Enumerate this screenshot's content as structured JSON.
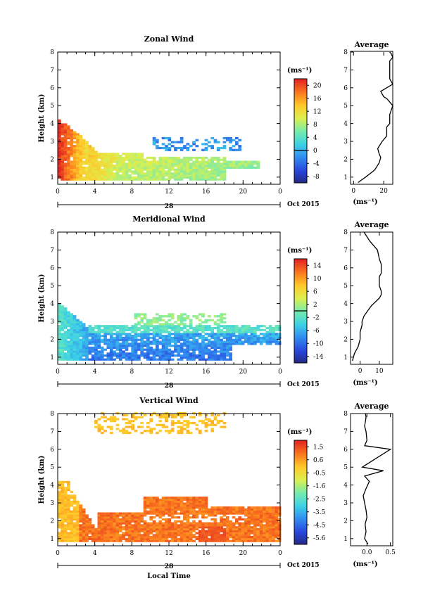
{
  "panels": [
    {
      "id": "zonal",
      "title": "Zonal Wind",
      "unit": "(ms⁻¹)",
      "colorbar_ticks": [
        "20",
        "16",
        "12",
        "8",
        "4",
        "0",
        "-4",
        "-8"
      ],
      "colorbar_range": [
        -10,
        22
      ],
      "zero_value": 0,
      "avg_ticks": [
        "0",
        "20"
      ],
      "avg_range": [
        -2,
        26
      ]
    },
    {
      "id": "meridional",
      "title": "Meridional Wind",
      "unit": "(ms⁻¹)",
      "colorbar_ticks": [
        "14",
        "10",
        "6",
        "2",
        "-2",
        "-6",
        "-10",
        "-14"
      ],
      "colorbar_range": [
        -16,
        16
      ],
      "zero_value": 0,
      "avg_ticks": [
        "0",
        "10"
      ],
      "avg_range": [
        -5,
        17
      ]
    },
    {
      "id": "vertical",
      "title": "Vertical Wind",
      "unit": "(ms⁻¹)",
      "colorbar_ticks": [
        "1.5",
        "0.6",
        "-0.5",
        "-1.6",
        "-2.5",
        "-3.5",
        "-4.5",
        "-5.6"
      ],
      "colorbar_range": [
        -6,
        2
      ],
      "zero_value": null,
      "avg_ticks": [
        "0.0",
        "0.5"
      ],
      "avg_range": [
        -0.35,
        0.55
      ]
    }
  ],
  "common": {
    "ylabel": "Height (km)",
    "y_ticks": [
      "1",
      "2",
      "3",
      "4",
      "5",
      "6",
      "7",
      "8"
    ],
    "x_ticks": [
      "0",
      "4",
      "8",
      "12",
      "16",
      "20",
      "0"
    ],
    "date_day": "28",
    "date_label": "Oct 2015",
    "xlabel": "Local Time",
    "avg_title": "Average",
    "avg_xlabel": "(ms⁻¹)"
  },
  "chart_data": [
    {
      "type": "heatmap",
      "title": "Zonal Wind",
      "ylabel": "Height (km)",
      "xlabel": "Local Time",
      "x_unit": "hour",
      "xlim": [
        0,
        24
      ],
      "ylim": [
        0.6,
        8
      ],
      "colorscale_range": [
        -10,
        22
      ],
      "description_points": [
        {
          "x": 0.5,
          "y": 3.5,
          "v": 21
        },
        {
          "x": 1,
          "y": 2.5,
          "v": 20
        },
        {
          "x": 2,
          "y": 2,
          "v": 16
        },
        {
          "x": 4,
          "y": 1.5,
          "v": 12
        },
        {
          "x": 8,
          "y": 1.5,
          "v": 10
        },
        {
          "x": 12,
          "y": 1.2,
          "v": 8
        },
        {
          "x": 16,
          "y": 1.5,
          "v": 7
        },
        {
          "x": 12,
          "y": 2.5,
          "v": -4
        }
      ]
    },
    {
      "type": "line",
      "title": "Average",
      "xlabel": "(ms⁻¹)",
      "ylabel": "Height (km)",
      "x": [
        3,
        8,
        14,
        17,
        18,
        17,
        16,
        19,
        22,
        22,
        22,
        24,
        24,
        24,
        26,
        24,
        22,
        20,
        18,
        22,
        26,
        24,
        24,
        24,
        24,
        24,
        24,
        26,
        25,
        24
      ],
      "y": [
        0.7,
        1.0,
        1.4,
        1.8,
        2.1,
        2.3,
        2.6,
        3.0,
        3.3,
        3.5,
        3.8,
        4.0,
        4.2,
        4.5,
        5.0,
        5.2,
        5.4,
        5.5,
        5.8,
        6.0,
        6.2,
        6.5,
        6.8,
        7.0,
        7.1,
        7.3,
        7.5,
        7.7,
        7.9,
        8.0
      ]
    },
    {
      "type": "heatmap",
      "title": "Meridional Wind",
      "ylabel": "Height (km)",
      "xlabel": "Local Time",
      "x_unit": "hour",
      "xlim": [
        0,
        24
      ],
      "ylim": [
        0.6,
        8
      ],
      "colorscale_range": [
        -16,
        16
      ],
      "description_points": [
        {
          "x": 0.5,
          "y": 3.5,
          "v": -2
        },
        {
          "x": 2,
          "y": 2,
          "v": -4
        },
        {
          "x": 6,
          "y": 1.5,
          "v": -10
        },
        {
          "x": 10,
          "y": 1.2,
          "v": -12
        },
        {
          "x": 12,
          "y": 2.5,
          "v": 0
        },
        {
          "x": 14,
          "y": 3.0,
          "v": 1
        },
        {
          "x": 18,
          "y": 1.5,
          "v": -10
        },
        {
          "x": 22,
          "y": 2.5,
          "v": -2
        }
      ]
    },
    {
      "type": "line",
      "title": "Average",
      "xlabel": "(ms⁻¹)",
      "ylabel": "Height (km)",
      "x": [
        -4,
        -3,
        -1,
        0,
        0,
        1,
        1,
        2,
        4,
        6,
        8,
        10,
        11,
        11,
        10,
        10,
        10,
        11,
        11,
        11,
        10,
        9,
        5,
        2
      ],
      "y": [
        0.8,
        1.2,
        1.6,
        2.0,
        2.4,
        2.8,
        3.0,
        3.3,
        3.6,
        3.9,
        4.1,
        4.3,
        4.5,
        4.7,
        5.0,
        5.3,
        5.5,
        5.7,
        6.0,
        6.2,
        6.5,
        7.0,
        7.5,
        8.0
      ]
    },
    {
      "type": "heatmap",
      "title": "Vertical Wind",
      "ylabel": "Height (km)",
      "xlabel": "Local Time",
      "x_unit": "hour",
      "xlim": [
        0,
        24
      ],
      "ylim": [
        0.6,
        8
      ],
      "colorscale_range": [
        -6,
        2
      ],
      "description_points": [
        {
          "x": 1,
          "y": 3,
          "v": 0.2
        },
        {
          "x": 6,
          "y": 2.5,
          "v": 1.0
        },
        {
          "x": 10,
          "y": 2,
          "v": 0.8
        },
        {
          "x": 14,
          "y": 3,
          "v": 0.8
        },
        {
          "x": 18,
          "y": 1.5,
          "v": 1.2
        },
        {
          "x": 10,
          "y": 7.5,
          "v": 0.2
        }
      ]
    },
    {
      "type": "line",
      "title": "Average",
      "xlabel": "(ms⁻¹)",
      "ylabel": "Height (km)",
      "x": [
        0.02,
        -0.05,
        -0.02,
        -0.04,
        0.0,
        -0.02,
        -0.05,
        -0.08,
        -0.02,
        0.05,
        -0.05,
        0.35,
        -0.1,
        0.5,
        -0.05,
        0.0,
        -0.02,
        -0.05,
        -0.03,
        -0.02,
        -0.03
      ],
      "y": [
        0.7,
        1.0,
        1.4,
        1.8,
        2.2,
        2.6,
        3.0,
        3.4,
        3.8,
        4.2,
        4.5,
        4.8,
        5.0,
        6.0,
        6.2,
        6.5,
        7.0,
        7.3,
        7.6,
        7.8,
        8.0
      ]
    }
  ]
}
